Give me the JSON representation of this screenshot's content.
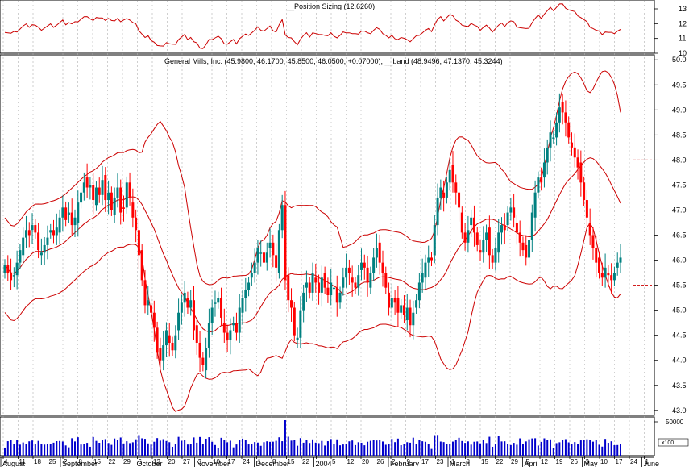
{
  "chart_data": {
    "type": "candlestick",
    "indicator_panel": {
      "label": "__Position Sizing (12.6260)",
      "y_ticks": [
        "13",
        "12",
        "11",
        "10"
      ],
      "ylim": [
        10,
        13.6
      ]
    },
    "price_panel": {
      "label": "General Mills, Inc. (45.9800, 46.1700, 45.8500, 46.0500, +0.07000), __band (48.9496, 47.1370, 45.3244)",
      "y_ticks": [
        "50.0",
        "49.5",
        "49.0",
        "48.5",
        "48.0",
        "47.5",
        "47.0",
        "46.5",
        "46.0",
        "45.5",
        "45.0",
        "44.5",
        "44.0",
        "43.5",
        "43.0"
      ],
      "ylim": [
        42.9,
        50.1
      ],
      "reference_levels": [
        {
          "value": 48.0,
          "style": "dashed"
        },
        {
          "value": 45.5,
          "style": "dashed"
        }
      ]
    },
    "volume_panel": {
      "y_ticks": [
        "50000"
      ],
      "scale_label": "x100"
    },
    "x_axis": {
      "day_ticks": [
        "4",
        "11",
        "18",
        "25",
        "2",
        "8",
        "15",
        "22",
        "29",
        "6",
        "13",
        "20",
        "27",
        "3",
        "10",
        "17",
        "24",
        "1",
        "8",
        "15",
        "22",
        "",
        "5",
        "12",
        "20",
        "26",
        "2",
        "9",
        "17",
        "23",
        "1",
        "8",
        "15",
        "22",
        "29",
        "5",
        "12",
        "19",
        "26",
        "3",
        "10",
        "17",
        "24",
        "1",
        "7"
      ],
      "month_labels": [
        "August",
        "September",
        "October",
        "November",
        "December",
        "2004",
        "February",
        "March",
        "April",
        "May",
        "June"
      ],
      "month_start_index": [
        0,
        4,
        9,
        13,
        17,
        21,
        26,
        30,
        35,
        39,
        43
      ]
    },
    "series": {
      "start_index": 0,
      "bars_per_tick": 5,
      "close": [
        45.9,
        45.75,
        45.6,
        45.7,
        45.95,
        46.2,
        46.45,
        46.6,
        46.5,
        46.7,
        46.55,
        46.2,
        46.15,
        46.3,
        46.45,
        46.6,
        46.5,
        46.65,
        46.85,
        47.05,
        46.8,
        46.95,
        46.7,
        46.85,
        47.15,
        47.35,
        47.55,
        47.45,
        47.5,
        47.2,
        47.45,
        47.3,
        47.6,
        47.2,
        47.35,
        47.0,
        47.25,
        47.45,
        46.95,
        47.05,
        47.55,
        47.25,
        46.85,
        46.6,
        46.1,
        45.6,
        45.1,
        45.2,
        44.95,
        44.65,
        44.15,
        44.0,
        44.3,
        44.6,
        44.35,
        44.2,
        44.5,
        44.95,
        45.15,
        45.35,
        45.05,
        45.2,
        44.6,
        44.35,
        44.05,
        43.9,
        44.25,
        44.75,
        45.05,
        45.15,
        45.25,
        44.85,
        44.55,
        44.4,
        44.6,
        44.75,
        44.55,
        45.05,
        45.25,
        45.4,
        45.55,
        45.75,
        45.95,
        46.25,
        46.15,
        45.95,
        46.15,
        46.35,
        46.1,
        45.85,
        46.6,
        47.1,
        45.6,
        45.2,
        45.05,
        44.5,
        44.45,
        45.0,
        45.35,
        45.55,
        45.35,
        45.75,
        45.55,
        45.35,
        45.65,
        45.45,
        45.3,
        45.55,
        45.45,
        45.15,
        45.35,
        45.65,
        45.85,
        45.75,
        45.55,
        45.45,
        45.7,
        45.95,
        45.85,
        45.55,
        45.75,
        46.05,
        46.25,
        45.95,
        45.75,
        45.45,
        45.05,
        45.25,
        45.15,
        44.95,
        45.1,
        44.9,
        45.05,
        44.7,
        44.95,
        45.2,
        45.55,
        45.75,
        45.95,
        46.05,
        46.0,
        46.7,
        47.25,
        47.45,
        47.25,
        47.55,
        47.8,
        47.55,
        47.35,
        47.05,
        46.55,
        46.35,
        46.6,
        46.85,
        46.55,
        46.3,
        46.15,
        46.4,
        46.55,
        46.1,
        45.95,
        46.25,
        46.55,
        46.7,
        46.6,
        46.95,
        47.05,
        46.85,
        46.55,
        46.35,
        46.2,
        46.05,
        46.4,
        46.95,
        47.35,
        47.65,
        47.55,
        47.95,
        48.25,
        48.55,
        48.45,
        48.75,
        49.05,
        48.95,
        48.75,
        48.45,
        48.25,
        48.05,
        47.85,
        47.55,
        47.2,
        46.85,
        46.5,
        46.25,
        45.95,
        45.75,
        45.65,
        45.85,
        45.7,
        45.6,
        45.75,
        45.95,
        46.05
      ],
      "band_upper_end": 48.9496,
      "band_mid_end": 47.137,
      "band_lower_end": 45.3244
    }
  }
}
